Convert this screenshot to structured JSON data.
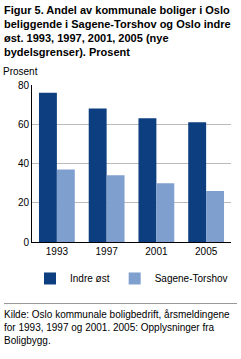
{
  "chart_data": {
    "type": "bar",
    "title": "Figur 5. Andel av kommunale boliger i Oslo beliggende i Sagene-Torshov og Oslo indre øst. 1993, 1997, 2001, 2005 (nye bydelsgrenser). Prosent",
    "y_label": "Prosent",
    "source": "Kilde: Oslo kommunale boligbedrift, årsmeldingene for 1993, 1997 og 2001. 2005: Opplysninger fra Boligbygg.",
    "categories": [
      "1993",
      "1997",
      "2001",
      "2005"
    ],
    "series": [
      {
        "name": "Indre øst",
        "color": "#0d3f80",
        "values": [
          76,
          68,
          63,
          61
        ]
      },
      {
        "name": "Sagene-Torshov",
        "color": "#7f9fcf",
        "values": [
          37,
          34,
          30,
          26
        ]
      }
    ],
    "ylim": [
      0,
      80
    ],
    "yticks": [
      0,
      20,
      40,
      60,
      80
    ],
    "grid": true,
    "legend": "bottom"
  }
}
